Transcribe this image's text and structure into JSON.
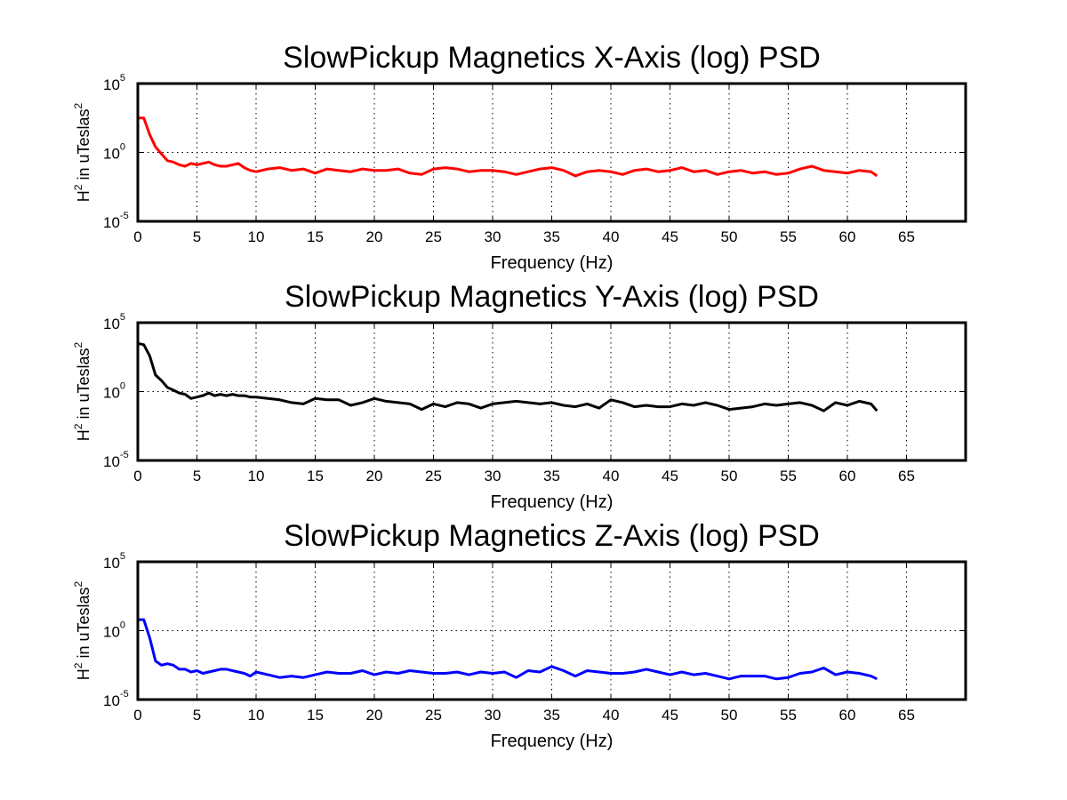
{
  "chart_data": [
    {
      "type": "line",
      "title": "SlowPickup Magnetics X-Axis (log) PSD",
      "xlabel": "Frequency (Hz)",
      "ylabel": "H",
      "ylabel_sup": "2",
      "ylabel_tail": " in uTeslas",
      "ylabel_tail_sup": "2",
      "xlim": [
        0,
        70
      ],
      "ylim_log10": [
        -5,
        5
      ],
      "yscale": "log",
      "grid": true,
      "xticks": [
        0,
        5,
        10,
        15,
        20,
        25,
        30,
        35,
        40,
        45,
        50,
        55,
        60,
        65
      ],
      "yticks": [
        {
          "base": "10",
          "exp": "-5",
          "value": -5
        },
        {
          "base": "10",
          "exp": "0",
          "value": 0
        },
        {
          "base": "10",
          "exp": "5",
          "value": 5
        }
      ],
      "series": [
        {
          "color": "#ff0000",
          "x": [
            0,
            0.5,
            1,
            1.5,
            2,
            2.5,
            3,
            3.5,
            4,
            4.5,
            5,
            5.5,
            6,
            6.5,
            7,
            7.5,
            8,
            8.5,
            9,
            9.5,
            10,
            11,
            12,
            13,
            14,
            15,
            16,
            17,
            18,
            19,
            20,
            21,
            22,
            23,
            24,
            25,
            26,
            27,
            28,
            29,
            30,
            31,
            32,
            33,
            34,
            35,
            36,
            37,
            38,
            39,
            40,
            41,
            42,
            43,
            44,
            45,
            46,
            47,
            48,
            49,
            50,
            51,
            52,
            53,
            54,
            55,
            56,
            57,
            58,
            59,
            60,
            61,
            62,
            62.5
          ],
          "y_log10": [
            2.5,
            2.5,
            1.3,
            0.4,
            -0.1,
            -0.6,
            -0.7,
            -0.9,
            -1.0,
            -0.8,
            -0.9,
            -0.8,
            -0.7,
            -0.9,
            -1.0,
            -1.0,
            -0.9,
            -0.8,
            -1.1,
            -1.3,
            -1.4,
            -1.2,
            -1.1,
            -1.3,
            -1.2,
            -1.5,
            -1.2,
            -1.3,
            -1.4,
            -1.2,
            -1.3,
            -1.3,
            -1.2,
            -1.5,
            -1.6,
            -1.2,
            -1.1,
            -1.2,
            -1.4,
            -1.3,
            -1.3,
            -1.4,
            -1.6,
            -1.4,
            -1.2,
            -1.1,
            -1.3,
            -1.7,
            -1.4,
            -1.3,
            -1.4,
            -1.6,
            -1.3,
            -1.2,
            -1.4,
            -1.3,
            -1.1,
            -1.4,
            -1.3,
            -1.6,
            -1.4,
            -1.3,
            -1.5,
            -1.4,
            -1.6,
            -1.5,
            -1.2,
            -1.0,
            -1.3,
            -1.4,
            -1.5,
            -1.3,
            -1.4,
            -1.7
          ]
        }
      ]
    },
    {
      "type": "line",
      "title": "SlowPickup Magnetics Y-Axis (log) PSD",
      "xlabel": "Frequency (Hz)",
      "ylabel": "H",
      "ylabel_sup": "2",
      "ylabel_tail": " in uTeslas",
      "ylabel_tail_sup": "2",
      "xlim": [
        0,
        70
      ],
      "ylim_log10": [
        -5,
        5
      ],
      "yscale": "log",
      "grid": true,
      "xticks": [
        0,
        5,
        10,
        15,
        20,
        25,
        30,
        35,
        40,
        45,
        50,
        55,
        60,
        65
      ],
      "yticks": [
        {
          "base": "10",
          "exp": "-5",
          "value": -5
        },
        {
          "base": "10",
          "exp": "0",
          "value": 0
        },
        {
          "base": "10",
          "exp": "5",
          "value": 5
        }
      ],
      "series": [
        {
          "color": "#000000",
          "x": [
            0,
            0.5,
            1,
            1.5,
            2,
            2.5,
            3,
            3.5,
            4,
            4.5,
            5,
            5.5,
            6,
            6.5,
            7,
            7.5,
            8,
            8.5,
            9,
            9.5,
            10,
            11,
            12,
            13,
            14,
            15,
            16,
            17,
            18,
            19,
            20,
            21,
            22,
            23,
            24,
            25,
            26,
            27,
            28,
            29,
            30,
            31,
            32,
            33,
            34,
            35,
            36,
            37,
            38,
            39,
            40,
            41,
            42,
            43,
            44,
            45,
            46,
            47,
            48,
            49,
            50,
            51,
            52,
            53,
            54,
            55,
            56,
            57,
            58,
            59,
            60,
            61,
            62,
            62.5
          ],
          "y_log10": [
            3.5,
            3.4,
            2.6,
            1.2,
            0.8,
            0.3,
            0.1,
            -0.1,
            -0.2,
            -0.5,
            -0.4,
            -0.3,
            -0.1,
            -0.3,
            -0.2,
            -0.3,
            -0.2,
            -0.3,
            -0.3,
            -0.4,
            -0.4,
            -0.5,
            -0.6,
            -0.8,
            -0.9,
            -0.5,
            -0.6,
            -0.6,
            -1.0,
            -0.8,
            -0.5,
            -0.7,
            -0.8,
            -0.9,
            -1.3,
            -0.9,
            -1.1,
            -0.8,
            -0.9,
            -1.2,
            -0.9,
            -0.8,
            -0.7,
            -0.8,
            -0.9,
            -0.8,
            -1.0,
            -1.1,
            -0.9,
            -1.2,
            -0.6,
            -0.8,
            -1.1,
            -1.0,
            -1.1,
            -1.1,
            -0.9,
            -1.0,
            -0.8,
            -1.0,
            -1.3,
            -1.2,
            -1.1,
            -0.9,
            -1.0,
            -0.9,
            -0.8,
            -1.0,
            -1.4,
            -0.8,
            -1.0,
            -0.7,
            -0.9,
            -1.4
          ]
        }
      ]
    },
    {
      "type": "line",
      "title": "SlowPickup Magnetics Z-Axis (log) PSD",
      "xlabel": "Frequency (Hz)",
      "ylabel": "H",
      "ylabel_sup": "2",
      "ylabel_tail": " in uTeslas",
      "ylabel_tail_sup": "2",
      "xlim": [
        0,
        70
      ],
      "ylim_log10": [
        -5,
        5
      ],
      "yscale": "log",
      "grid": true,
      "xticks": [
        0,
        5,
        10,
        15,
        20,
        25,
        30,
        35,
        40,
        45,
        50,
        55,
        60,
        65
      ],
      "yticks": [
        {
          "base": "10",
          "exp": "-5",
          "value": -5
        },
        {
          "base": "10",
          "exp": "0",
          "value": 0
        },
        {
          "base": "10",
          "exp": "5",
          "value": 5
        }
      ],
      "series": [
        {
          "color": "#0000ff",
          "x": [
            0,
            0.5,
            1,
            1.5,
            2,
            2.5,
            3,
            3.5,
            4,
            4.5,
            5,
            5.5,
            6,
            6.5,
            7,
            7.5,
            8,
            8.5,
            9,
            9.5,
            10,
            11,
            12,
            13,
            14,
            15,
            16,
            17,
            18,
            19,
            20,
            21,
            22,
            23,
            24,
            25,
            26,
            27,
            28,
            29,
            30,
            31,
            32,
            33,
            34,
            35,
            36,
            37,
            38,
            39,
            40,
            41,
            42,
            43,
            44,
            45,
            46,
            47,
            48,
            49,
            50,
            51,
            52,
            53,
            54,
            55,
            56,
            57,
            58,
            59,
            60,
            61,
            62,
            62.5
          ],
          "y_log10": [
            0.8,
            0.8,
            -0.5,
            -2.2,
            -2.5,
            -2.4,
            -2.5,
            -2.8,
            -2.8,
            -3.0,
            -2.9,
            -3.1,
            -3.0,
            -2.9,
            -2.8,
            -2.8,
            -2.9,
            -3.0,
            -3.1,
            -3.3,
            -3.0,
            -3.2,
            -3.4,
            -3.3,
            -3.4,
            -3.2,
            -3.0,
            -3.1,
            -3.1,
            -2.9,
            -3.2,
            -3.0,
            -3.1,
            -2.9,
            -3.0,
            -3.1,
            -3.1,
            -3.0,
            -3.2,
            -3.0,
            -3.1,
            -3.0,
            -3.4,
            -2.9,
            -3.0,
            -2.6,
            -2.9,
            -3.3,
            -2.9,
            -3.0,
            -3.1,
            -3.1,
            -3.0,
            -2.8,
            -3.0,
            -3.2,
            -3.0,
            -3.2,
            -3.1,
            -3.3,
            -3.5,
            -3.3,
            -3.3,
            -3.3,
            -3.5,
            -3.4,
            -3.1,
            -3.0,
            -2.7,
            -3.2,
            -3.0,
            -3.1,
            -3.3,
            -3.5
          ]
        }
      ]
    }
  ]
}
